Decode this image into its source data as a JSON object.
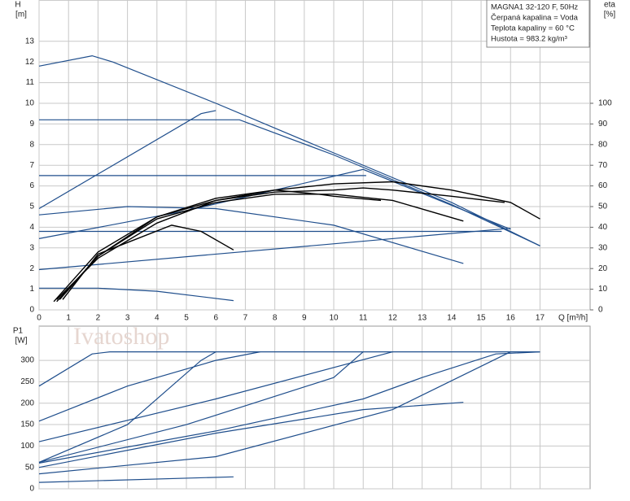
{
  "chart_data": [
    {
      "type": "line",
      "y_label": "H",
      "y_unit": "[m]",
      "y2_label": "eta",
      "y2_unit": "[%]",
      "x_label": "Q [m³/h]",
      "xlim": [
        0,
        18.7
      ],
      "xticks": [
        0,
        1,
        2,
        3,
        4,
        5,
        6,
        7,
        8,
        9,
        10,
        11,
        12,
        13,
        14,
        15,
        16,
        17
      ],
      "ylim": [
        0,
        15
      ],
      "yticks": [
        0,
        1,
        2,
        3,
        4,
        5,
        6,
        7,
        8,
        9,
        10,
        11,
        12,
        13
      ],
      "y2lim": [
        0,
        150
      ],
      "y2ticks": [
        0,
        10,
        20,
        30,
        40,
        50,
        60,
        70,
        80,
        90,
        100
      ],
      "grid": true,
      "series": [
        {
          "color": "#1f4e8c",
          "x": [
            0,
            1.8,
            2.5,
            6,
            10,
            14,
            17
          ],
          "values": [
            11.8,
            12.3,
            12,
            10,
            7.6,
            5.2,
            3.1
          ]
        },
        {
          "color": "#1f4e8c",
          "x": [
            0,
            5.5,
            6
          ],
          "values": [
            4.9,
            9.5,
            9.65
          ]
        },
        {
          "color": "#1f4e8c",
          "x": [
            0,
            6.8,
            10,
            12,
            14,
            17
          ],
          "values": [
            9.2,
            9.2,
            7.5,
            6.3,
            5.1,
            3.1
          ]
        },
        {
          "color": "#1f4e8c",
          "x": [
            0,
            11.1
          ],
          "values": [
            6.5,
            6.5
          ]
        },
        {
          "color": "#1f4e8c",
          "x": [
            0,
            15.7
          ],
          "values": [
            3.8,
            3.8
          ]
        },
        {
          "color": "#1f4e8c",
          "x": [
            0,
            2,
            4,
            6.6
          ],
          "values": [
            1.05,
            1.05,
            0.9,
            0.45
          ]
        },
        {
          "color": "#1f4e8c",
          "x": [
            0,
            3,
            6,
            10,
            14.4
          ],
          "values": [
            4.6,
            5,
            4.9,
            4.1,
            2.25
          ]
        },
        {
          "color": "#1f4e8c",
          "x": [
            0,
            5,
            11,
            16
          ],
          "values": [
            3.45,
            4.8,
            6.8,
            3.9
          ]
        },
        {
          "color": "#1f4e8c",
          "x": [
            0,
            16
          ],
          "values": [
            1.95,
            3.95
          ]
        },
        {
          "color": "#000000",
          "axis": "y2",
          "x": [
            0.6,
            2,
            4,
            6,
            8,
            10,
            12,
            14,
            16,
            17
          ],
          "values": [
            5,
            25,
            42,
            53,
            58,
            61,
            62,
            58,
            52,
            44
          ]
        },
        {
          "color": "#000000",
          "axis": "y2",
          "x": [
            0.5,
            2,
            4,
            6,
            8,
            10,
            11,
            12,
            14,
            15.8
          ],
          "values": [
            4,
            28,
            45,
            53,
            57,
            58,
            59,
            58,
            55,
            52
          ]
        },
        {
          "color": "#000000",
          "axis": "y2",
          "x": [
            0.7,
            2,
            4,
            6,
            8,
            10,
            12,
            14.4
          ],
          "values": [
            5,
            26,
            44,
            52,
            56,
            56,
            53,
            43
          ]
        },
        {
          "color": "#000000",
          "axis": "y2",
          "x": [
            0.6,
            2,
            4,
            6,
            8,
            9.5,
            10,
            11.6
          ],
          "values": [
            4,
            26,
            45,
            54,
            58,
            56,
            55,
            53
          ]
        },
        {
          "color": "#000000",
          "axis": "y2",
          "x": [
            0.8,
            2,
            4.5,
            5.5,
            6.6
          ],
          "values": [
            5,
            27,
            41,
            38,
            29
          ]
        }
      ]
    },
    {
      "type": "line",
      "y_label": "P1",
      "y_unit": "[W]",
      "xlim": [
        0,
        18.7
      ],
      "xticks": [
        0,
        1,
        2,
        3,
        4,
        5,
        6,
        7,
        8,
        9,
        10,
        11,
        12,
        13,
        14,
        15,
        16,
        17
      ],
      "ylim": [
        0,
        380
      ],
      "yticks": [
        0,
        50,
        100,
        150,
        200,
        250,
        300
      ],
      "grid": true,
      "series": [
        {
          "color": "#1f4e8c",
          "x": [
            0,
            1.8,
            2.4,
            17
          ],
          "values": [
            240,
            315,
            320,
            320
          ]
        },
        {
          "color": "#1f4e8c",
          "x": [
            0,
            3,
            6,
            7.5
          ],
          "values": [
            158,
            240,
            300,
            320
          ]
        },
        {
          "color": "#1f4e8c",
          "x": [
            0,
            6,
            12
          ],
          "values": [
            110,
            210,
            320
          ]
        },
        {
          "color": "#1f4e8c",
          "x": [
            0,
            6,
            11,
            13,
            15.5,
            17
          ],
          "values": [
            60,
            135,
            210,
            260,
            315,
            320
          ]
        },
        {
          "color": "#1f4e8c",
          "x": [
            0,
            3,
            5.5,
            6
          ],
          "values": [
            62,
            150,
            300,
            320
          ]
        },
        {
          "color": "#1f4e8c",
          "x": [
            0,
            5,
            10,
            11
          ],
          "values": [
            62,
            150,
            260,
            320
          ]
        },
        {
          "color": "#1f4e8c",
          "x": [
            0,
            6,
            12,
            16
          ],
          "values": [
            35,
            75,
            185,
            320
          ]
        },
        {
          "color": "#1f4e8c",
          "x": [
            0,
            6,
            11,
            14.4
          ],
          "values": [
            50,
            130,
            185,
            202
          ]
        },
        {
          "color": "#1f4e8c",
          "x": [
            0,
            6.6
          ],
          "values": [
            15,
            28
          ]
        }
      ]
    }
  ],
  "info": [
    "MAGNA1 32-120 F, 50Hz",
    "Čerpaná kapalina = Voda",
    "Teplota kapaliny = 60 °C",
    "Hustota = 983.2 kg/m³"
  ],
  "watermark": "Ivatoshop"
}
